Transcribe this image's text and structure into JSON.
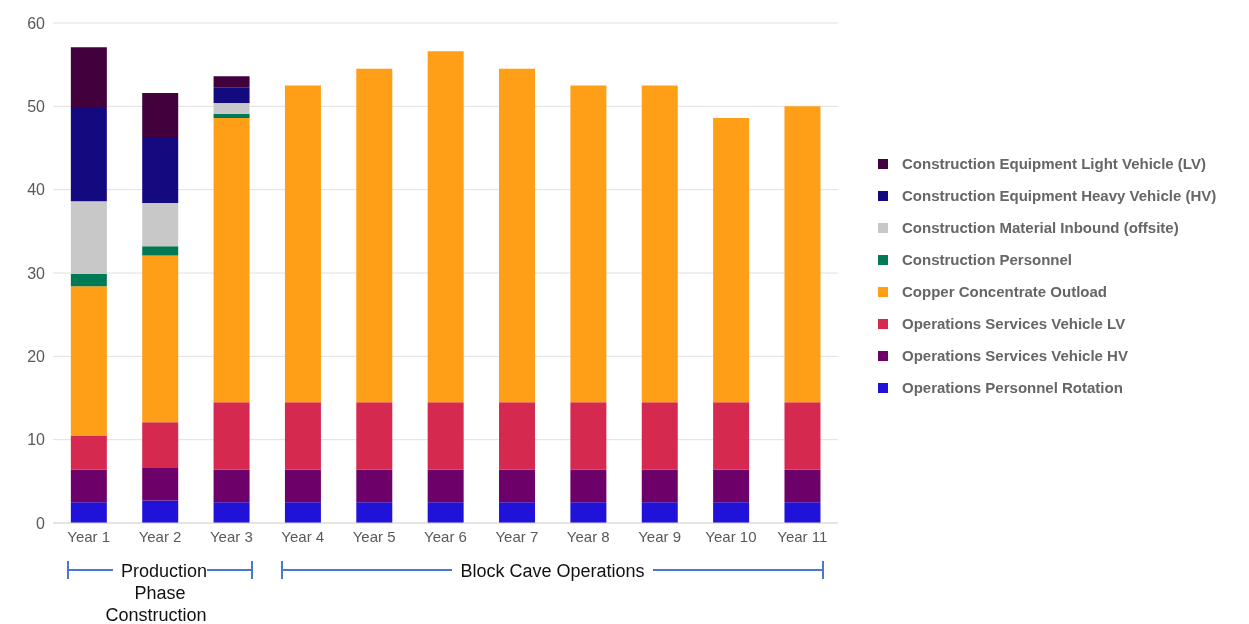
{
  "chart_data": {
    "type": "bar",
    "stacked": true,
    "categories": [
      "Year 1",
      "Year 2",
      "Year 3",
      "Year 4",
      "Year 5",
      "Year 6",
      "Year 7",
      "Year 8",
      "Year 9",
      "Year 10",
      "Year 11"
    ],
    "series": [
      {
        "name": "Operations Personnel Rotation",
        "color": "#2112d9",
        "values": [
          2.5,
          2.7,
          2.5,
          2.5,
          2.5,
          2.5,
          2.5,
          2.5,
          2.5,
          2.5,
          2.5
        ]
      },
      {
        "name": "Operations Services Vehicle HV",
        "color": "#6e0069",
        "values": [
          3.9,
          4.0,
          3.9,
          3.9,
          3.9,
          3.9,
          3.9,
          3.9,
          3.9,
          3.9,
          3.9
        ]
      },
      {
        "name": "Operations Services Vehicle LV",
        "color": "#d6294f",
        "values": [
          4.1,
          5.4,
          8.1,
          8.1,
          8.1,
          8.1,
          8.1,
          8.1,
          8.1,
          8.1,
          8.1
        ]
      },
      {
        "name": "Copper Concentrate Outload",
        "color": "#ff9f17",
        "values": [
          17.9,
          20.0,
          34.1,
          38.0,
          40.0,
          42.1,
          40.0,
          38.0,
          38.0,
          34.1,
          35.5
        ]
      },
      {
        "name": "Construction Personnel",
        "color": "#007a55",
        "values": [
          1.5,
          1.1,
          0.5,
          null,
          null,
          null,
          null,
          null,
          null,
          null,
          null
        ]
      },
      {
        "name": "Construction Material Inbound (offsite)",
        "color": "#c8c8c8",
        "values": [
          8.7,
          5.2,
          1.3,
          null,
          null,
          null,
          null,
          null,
          null,
          null,
          null
        ]
      },
      {
        "name": "Construction Equipment Heavy Vehicle (HV)",
        "color": "#140a80",
        "values": [
          11.2,
          7.8,
          1.9,
          null,
          null,
          null,
          null,
          null,
          null,
          null,
          null
        ]
      },
      {
        "name": "Construction Equipment Light Vehicle (LV)",
        "color": "#42003d",
        "values": [
          7.3,
          5.4,
          1.3,
          null,
          null,
          null,
          null,
          null,
          null,
          null,
          null
        ]
      }
    ],
    "ylim": [
      0,
      60
    ],
    "yticks": [
      0,
      10,
      20,
      30,
      40,
      50,
      60
    ],
    "grid": "y",
    "legend": "right",
    "annotations": [
      "Production Phase Construction",
      "Block Cave Operations"
    ]
  }
}
